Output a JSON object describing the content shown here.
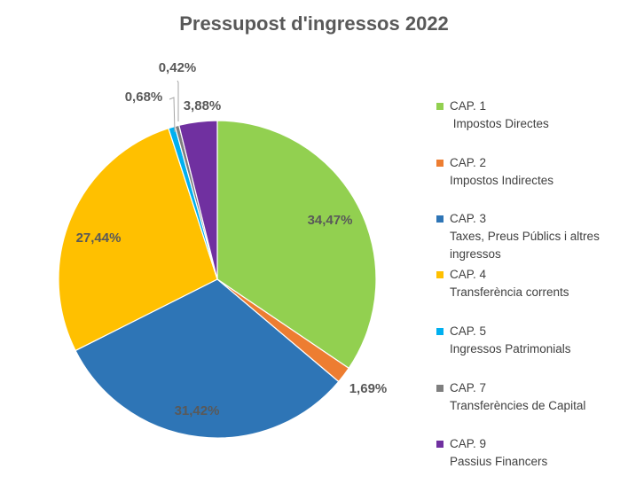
{
  "chart_data": {
    "type": "pie",
    "title": "Pressupost d'ingressos 2022",
    "slices": [
      {
        "code": "CAP. 1",
        "label": " Impostos Directes",
        "value": 34.47,
        "display": "34,47%",
        "color": "#92D050",
        "label_color": "#595959"
      },
      {
        "code": "CAP. 2",
        "label": "Impostos Indirectes",
        "value": 1.69,
        "display": "1,69%",
        "color": "#ED7D31",
        "label_color": "#595959"
      },
      {
        "code": "CAP. 3",
        "label": "Taxes, Preus Públics i altres ingressos",
        "value": 31.42,
        "display": "31,42%",
        "color": "#2E75B6",
        "label_color": "#595959"
      },
      {
        "code": "CAP. 4",
        "label": "Transferència corrents",
        "value": 27.44,
        "display": "27,44%",
        "color": "#FFC000",
        "label_color": "#595959"
      },
      {
        "code": "CAP. 5",
        "label": "Ingressos Patrimonials",
        "value": 0.68,
        "display": "0,68%",
        "color": "#00B0F0",
        "label_color": "#595959"
      },
      {
        "code": "CAP. 7",
        "label": "Transferències de Capital",
        "value": 0.42,
        "display": "0,42%",
        "color": "#7F7F7F",
        "label_color": "#595959"
      },
      {
        "code": "CAP. 9",
        "label": "Passius Financers",
        "value": 3.88,
        "display": "3,88%",
        "color": "#7030A0",
        "label_color": "#595959"
      }
    ],
    "legend_position": "right"
  }
}
